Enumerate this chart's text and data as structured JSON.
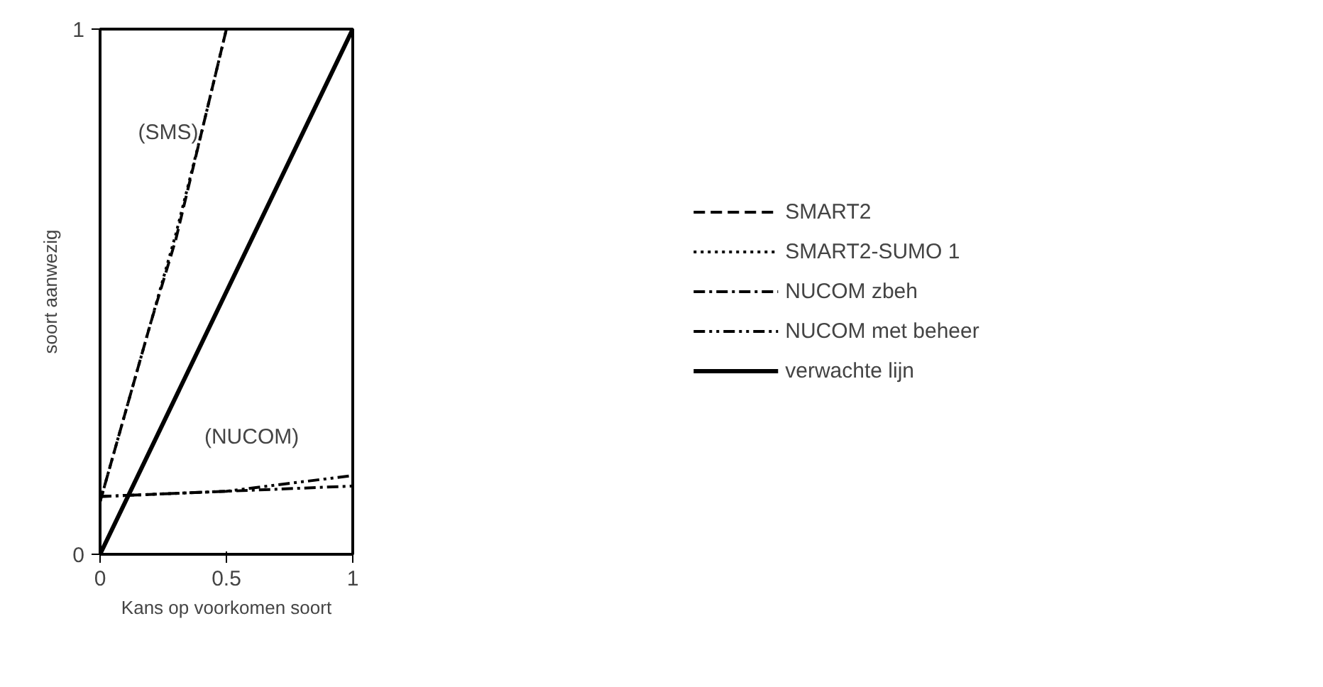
{
  "chart_data": {
    "type": "line",
    "xlabel": "Kans op voorkomen soort",
    "ylabel": "soort aanwezig",
    "xlim": [
      0,
      1
    ],
    "ylim": [
      0,
      1
    ],
    "xticks": [
      0,
      0.5,
      1
    ],
    "yticks": [
      0,
      1
    ],
    "grid": false,
    "legend": "right",
    "series": [
      {
        "name": "SMART2",
        "color": "#000000",
        "line_style": "dashed",
        "x": [
          0,
          0.1,
          0.2,
          0.3,
          0.4,
          0.5
        ],
        "values": [
          0.1,
          0.27,
          0.44,
          0.6,
          0.8,
          1.0
        ]
      },
      {
        "name": "SMART2-SUMO 1",
        "color": "#000000",
        "line_style": "dotted",
        "x": [
          0,
          0.1,
          0.2,
          0.3,
          0.4,
          0.5
        ],
        "values": [
          0.1,
          0.27,
          0.44,
          0.61,
          0.8,
          1.0
        ]
      },
      {
        "name": "NUCOM zbeh",
        "color": "#000000",
        "line_style": "dashdot",
        "x": [
          0,
          0.5,
          1
        ],
        "values": [
          0.11,
          0.12,
          0.13
        ]
      },
      {
        "name": "NUCOM met beheer",
        "color": "#000000",
        "line_style": "dashdotdot",
        "x": [
          0,
          0.5,
          1
        ],
        "values": [
          0.11,
          0.12,
          0.15
        ]
      },
      {
        "name": "verwachte lijn",
        "color": "#000000",
        "line_style": "solid",
        "x": [
          0,
          1
        ],
        "values": [
          0,
          1
        ]
      }
    ],
    "annotations": [
      "(SMS)",
      "(NUCOM)"
    ]
  }
}
